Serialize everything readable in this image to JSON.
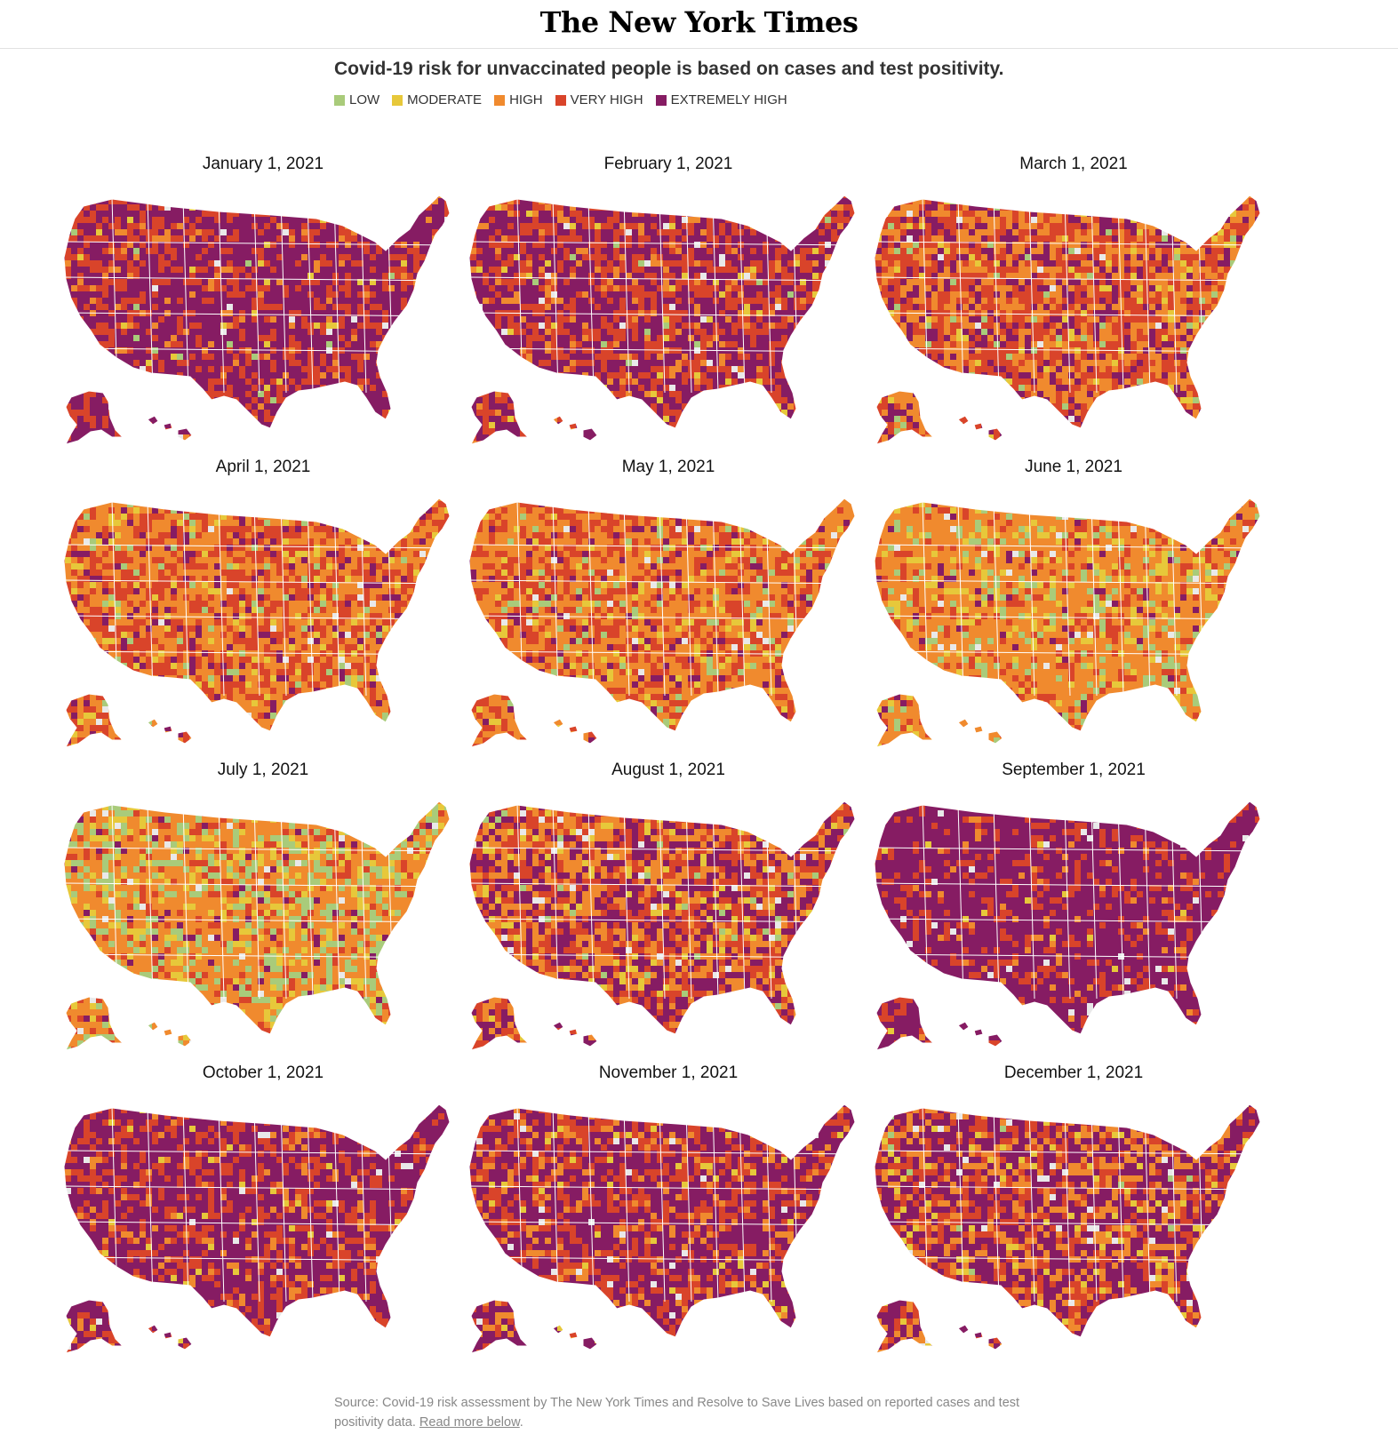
{
  "masthead": {
    "logo_text": "The New York Times"
  },
  "headline": "Covid-19 risk for unvaccinated people is based on cases and test positivity.",
  "legend": [
    {
      "label": "LOW",
      "color": "#a9cb7a"
    },
    {
      "label": "MODERATE",
      "color": "#e7c83a"
    },
    {
      "label": "HIGH",
      "color": "#f08a2e"
    },
    {
      "label": "VERY HIGH",
      "color": "#d9442a"
    },
    {
      "label": "EXTREMELY HIGH",
      "color": "#861c63"
    }
  ],
  "no_data_color": "#e9e9e9",
  "maps": [
    {
      "date": "January 1, 2021",
      "mix": {
        "LOW": 0.01,
        "MODERATE": 0.02,
        "HIGH": 0.07,
        "VERY HIGH": 0.3,
        "EXTREMELY HIGH": 0.6
      }
    },
    {
      "date": "February 1, 2021",
      "mix": {
        "LOW": 0.01,
        "MODERATE": 0.03,
        "HIGH": 0.1,
        "VERY HIGH": 0.36,
        "EXTREMELY HIGH": 0.5
      }
    },
    {
      "date": "March 1, 2021",
      "mix": {
        "LOW": 0.03,
        "MODERATE": 0.05,
        "HIGH": 0.34,
        "VERY HIGH": 0.38,
        "EXTREMELY HIGH": 0.2
      }
    },
    {
      "date": "April 1, 2021",
      "mix": {
        "LOW": 0.04,
        "MODERATE": 0.06,
        "HIGH": 0.46,
        "VERY HIGH": 0.34,
        "EXTREMELY HIGH": 0.1
      }
    },
    {
      "date": "May 1, 2021",
      "mix": {
        "LOW": 0.05,
        "MODERATE": 0.07,
        "HIGH": 0.48,
        "VERY HIGH": 0.32,
        "EXTREMELY HIGH": 0.08
      }
    },
    {
      "date": "June 1, 2021",
      "mix": {
        "LOW": 0.1,
        "MODERATE": 0.12,
        "HIGH": 0.58,
        "VERY HIGH": 0.16,
        "EXTREMELY HIGH": 0.04
      }
    },
    {
      "date": "July 1, 2021",
      "mix": {
        "LOW": 0.2,
        "MODERATE": 0.12,
        "HIGH": 0.52,
        "VERY HIGH": 0.12,
        "EXTREMELY HIGH": 0.04
      }
    },
    {
      "date": "August 1, 2021",
      "mix": {
        "LOW": 0.02,
        "MODERATE": 0.05,
        "HIGH": 0.3,
        "VERY HIGH": 0.28,
        "EXTREMELY HIGH": 0.35
      }
    },
    {
      "date": "September 1, 2021",
      "mix": {
        "LOW": 0.0,
        "MODERATE": 0.01,
        "HIGH": 0.04,
        "VERY HIGH": 0.2,
        "EXTREMELY HIGH": 0.75
      }
    },
    {
      "date": "October 1, 2021",
      "mix": {
        "LOW": 0.0,
        "MODERATE": 0.02,
        "HIGH": 0.08,
        "VERY HIGH": 0.28,
        "EXTREMELY HIGH": 0.62
      }
    },
    {
      "date": "November 1, 2021",
      "mix": {
        "LOW": 0.0,
        "MODERATE": 0.03,
        "HIGH": 0.12,
        "VERY HIGH": 0.3,
        "EXTREMELY HIGH": 0.55
      }
    },
    {
      "date": "December 1, 2021",
      "mix": {
        "LOW": 0.01,
        "MODERATE": 0.05,
        "HIGH": 0.24,
        "VERY HIGH": 0.25,
        "EXTREMELY HIGH": 0.45
      }
    }
  ],
  "source": {
    "text": "Source: Covid-19 risk assessment by The New York Times and Resolve to Save Lives based on reported cases and test positivity data.",
    "link_text": "Read more below",
    "trailing": "."
  }
}
